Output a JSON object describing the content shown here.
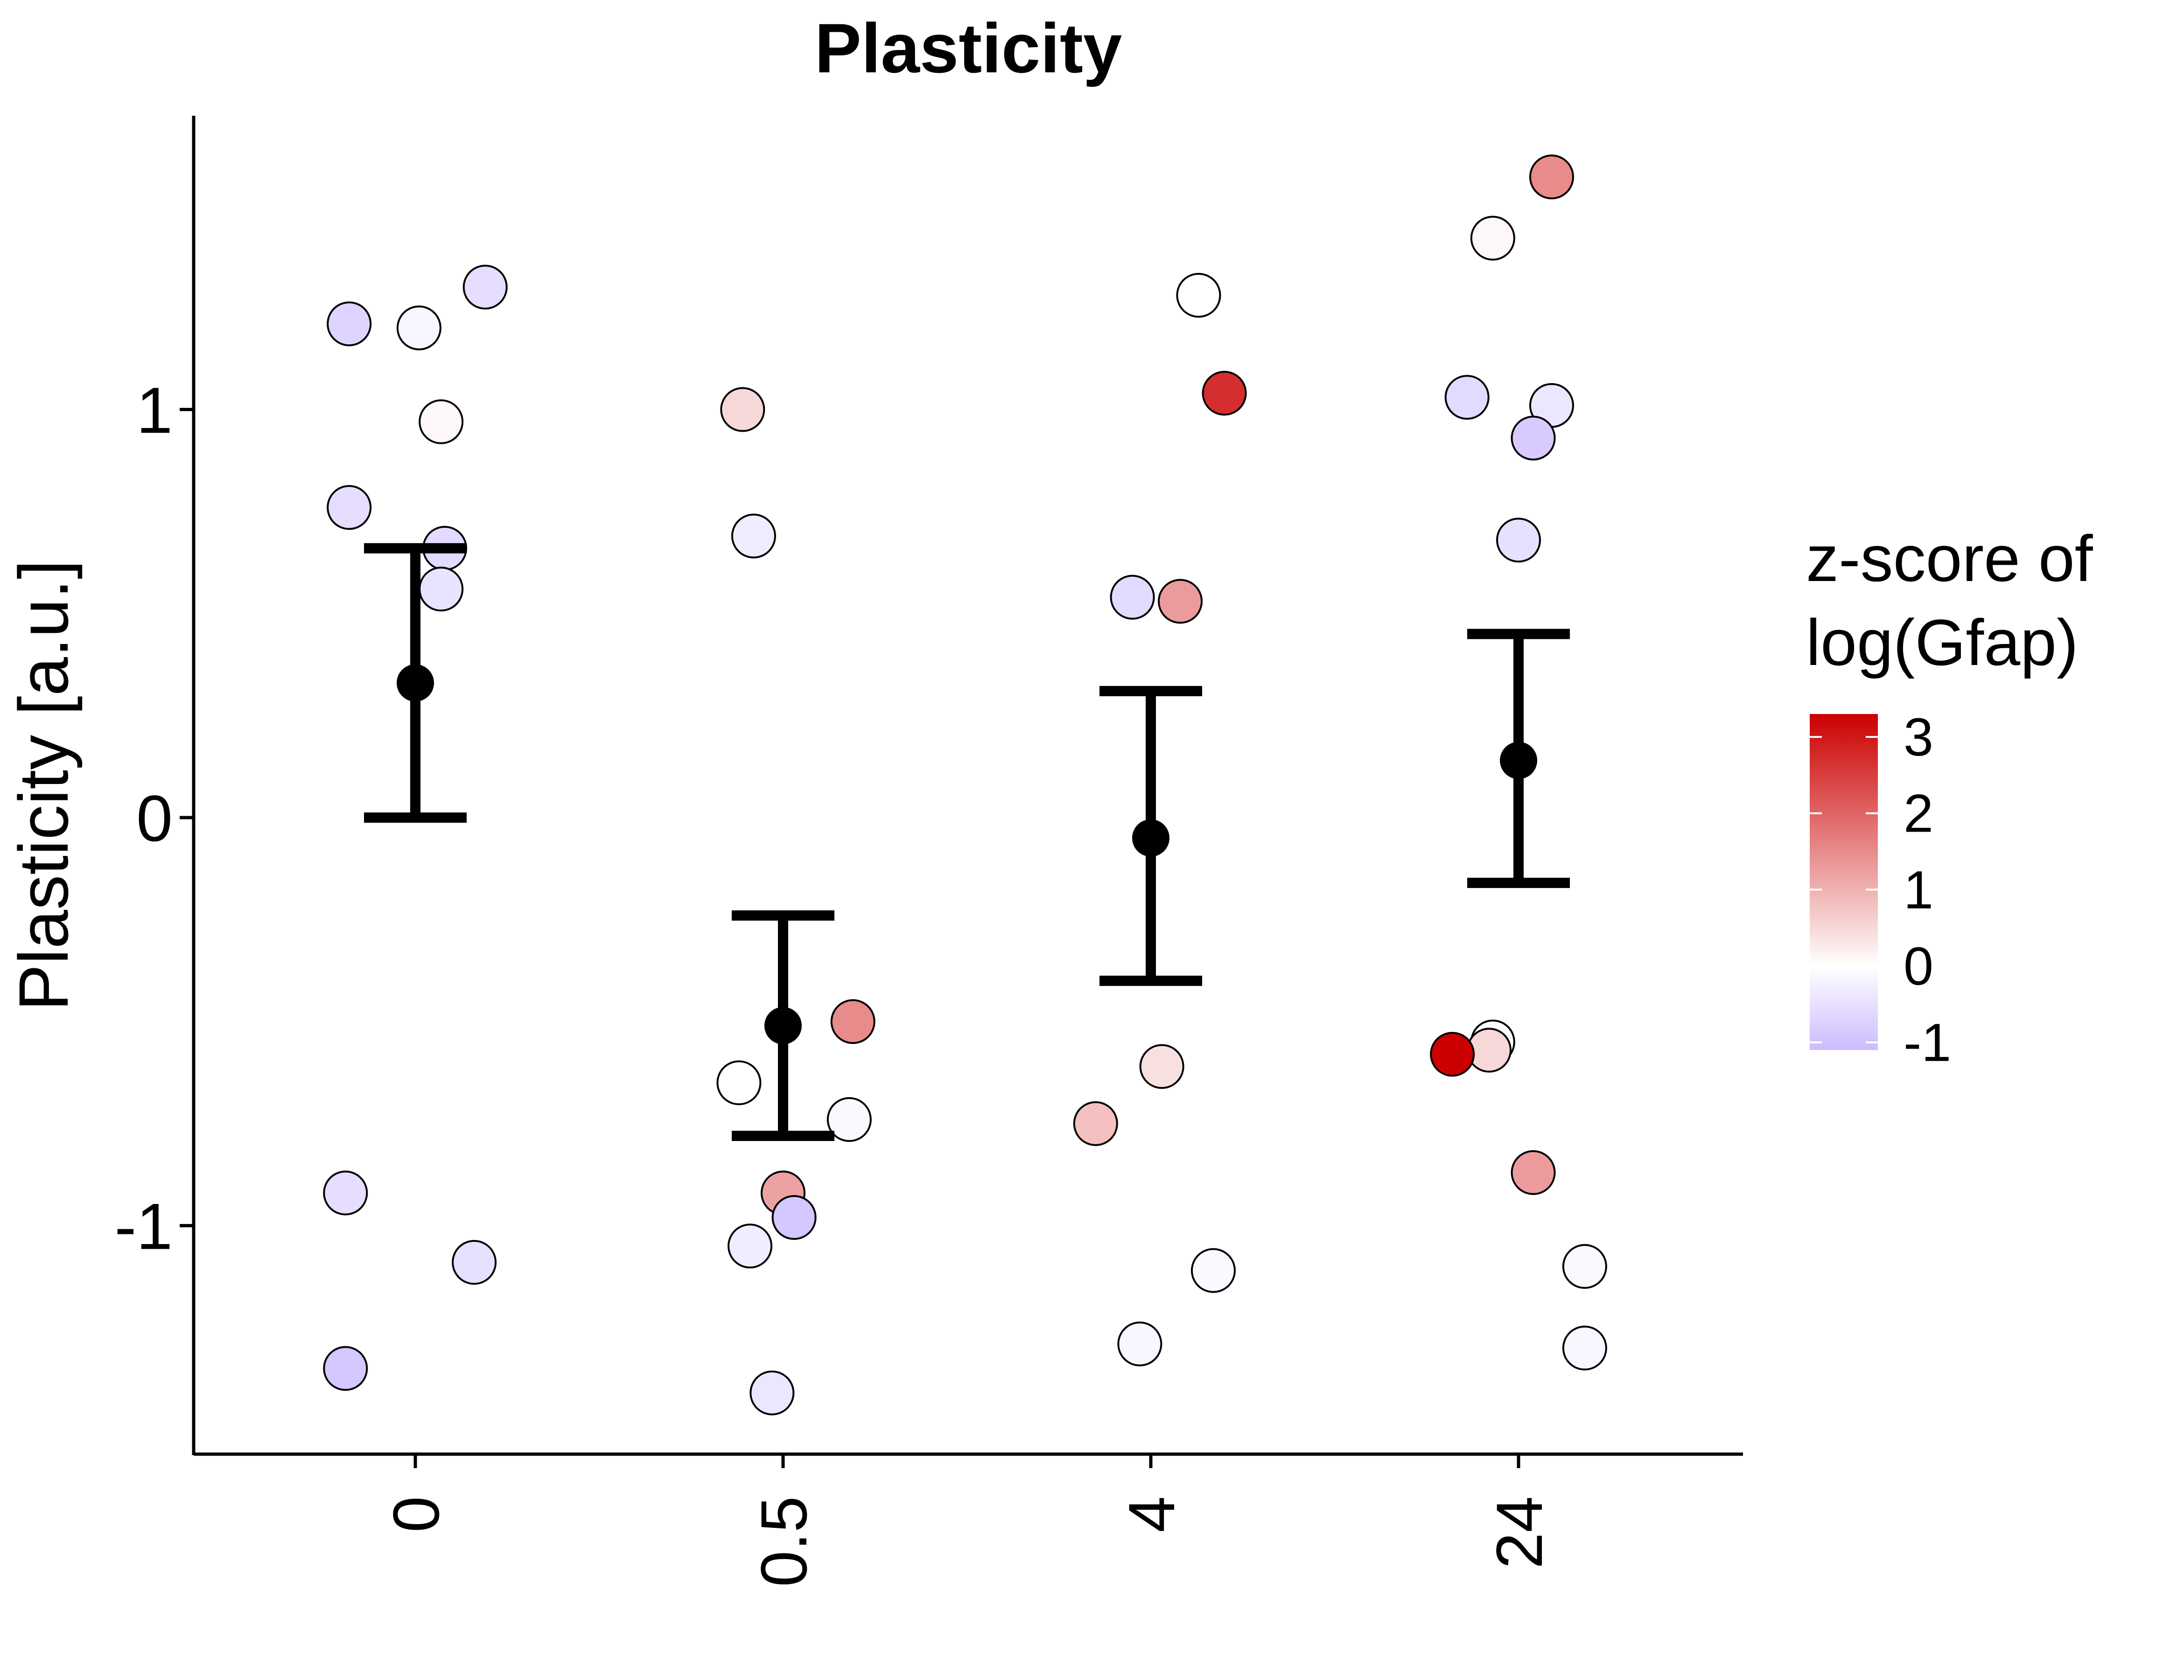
{
  "chart_data": {
    "type": "scatter",
    "title": "Plasticity",
    "xlabel": "",
    "ylabel": "Plasticity [a.u.]",
    "categories": [
      "0",
      "0.5",
      "4",
      "24"
    ],
    "ylim": [
      -1.56,
      1.72
    ],
    "yticks": [
      -1,
      0,
      1
    ],
    "grid": false,
    "legend": {
      "title": [
        "z-score of",
        "log(Gfap)"
      ],
      "placement": "right",
      "ticks": [
        3,
        2,
        1,
        0,
        -1
      ],
      "range": [
        -1.1,
        3.3
      ],
      "colors": {
        "low": "#ccbbff",
        "mid": "#ffffff",
        "high": "#cc0000"
      }
    },
    "summary": [
      {
        "x": "0",
        "mean": 0.33,
        "lower": 0.0,
        "upper": 0.66
      },
      {
        "x": "0.5",
        "mean": -0.51,
        "lower": -0.78,
        "upper": -0.24
      },
      {
        "x": "4",
        "mean": -0.05,
        "lower": -0.4,
        "upper": 0.31
      },
      {
        "x": "24",
        "mean": 0.14,
        "lower": -0.16,
        "upper": 0.45
      }
    ],
    "points": [
      {
        "x": "0",
        "jitter": -0.18,
        "y": 1.21,
        "z": -0.7
      },
      {
        "x": "0",
        "jitter": 0.01,
        "y": 1.2,
        "z": -0.15
      },
      {
        "x": "0",
        "jitter": 0.19,
        "y": 1.3,
        "z": -0.55
      },
      {
        "x": "0",
        "jitter": 0.07,
        "y": 0.97,
        "z": 0.1
      },
      {
        "x": "0",
        "jitter": -0.18,
        "y": 0.76,
        "z": -0.55
      },
      {
        "x": "0",
        "jitter": 0.08,
        "y": 0.66,
        "z": -0.6
      },
      {
        "x": "0",
        "jitter": 0.07,
        "y": 0.56,
        "z": -0.45
      },
      {
        "x": "0",
        "jitter": -0.19,
        "y": -0.92,
        "z": -0.55
      },
      {
        "x": "0",
        "jitter": 0.16,
        "y": -1.09,
        "z": -0.5
      },
      {
        "x": "0",
        "jitter": -0.19,
        "y": -1.35,
        "z": -0.9
      },
      {
        "x": "0.5",
        "jitter": -0.11,
        "y": 1.0,
        "z": 0.5
      },
      {
        "x": "0.5",
        "jitter": -0.08,
        "y": 0.69,
        "z": -0.3
      },
      {
        "x": "0.5",
        "jitter": 0.19,
        "y": -0.5,
        "z": 1.5
      },
      {
        "x": "0.5",
        "jitter": -0.12,
        "y": -0.65,
        "z": 0.0
      },
      {
        "x": "0.5",
        "jitter": 0.18,
        "y": -0.74,
        "z": -0.1
      },
      {
        "x": "0.5",
        "jitter": 0.0,
        "y": -0.92,
        "z": 1.2
      },
      {
        "x": "0.5",
        "jitter": 0.03,
        "y": -0.98,
        "z": -0.9
      },
      {
        "x": "0.5",
        "jitter": -0.09,
        "y": -1.05,
        "z": -0.3
      },
      {
        "x": "0.5",
        "jitter": -0.03,
        "y": -1.41,
        "z": -0.4
      },
      {
        "x": "4",
        "jitter": 0.13,
        "y": 1.28,
        "z": 0.0
      },
      {
        "x": "4",
        "jitter": 0.2,
        "y": 1.04,
        "z": 2.7
      },
      {
        "x": "4",
        "jitter": -0.05,
        "y": 0.54,
        "z": -0.6
      },
      {
        "x": "4",
        "jitter": 0.08,
        "y": 0.53,
        "z": 1.3
      },
      {
        "x": "4",
        "jitter": 0.03,
        "y": -0.61,
        "z": 0.4
      },
      {
        "x": "4",
        "jitter": -0.15,
        "y": -0.75,
        "z": 0.8
      },
      {
        "x": "4",
        "jitter": 0.17,
        "y": -1.11,
        "z": -0.1
      },
      {
        "x": "4",
        "jitter": -0.03,
        "y": -1.29,
        "z": -0.15
      },
      {
        "x": "24",
        "jitter": 0.09,
        "y": 1.57,
        "z": 1.5
      },
      {
        "x": "24",
        "jitter": -0.07,
        "y": 1.42,
        "z": 0.1
      },
      {
        "x": "24",
        "jitter": -0.14,
        "y": 1.03,
        "z": -0.6
      },
      {
        "x": "24",
        "jitter": 0.09,
        "y": 1.01,
        "z": -0.4
      },
      {
        "x": "24",
        "jitter": 0.04,
        "y": 0.93,
        "z": -0.85
      },
      {
        "x": "24",
        "jitter": 0.0,
        "y": 0.68,
        "z": -0.5
      },
      {
        "x": "24",
        "jitter": -0.07,
        "y": -0.55,
        "z": -0.05
      },
      {
        "x": "24",
        "jitter": -0.08,
        "y": -0.57,
        "z": 0.5
      },
      {
        "x": "24",
        "jitter": -0.18,
        "y": -0.58,
        "z": 3.3
      },
      {
        "x": "24",
        "jitter": 0.04,
        "y": -0.87,
        "z": 1.3
      },
      {
        "x": "24",
        "jitter": 0.18,
        "y": -1.1,
        "z": -0.1
      },
      {
        "x": "24",
        "jitter": 0.18,
        "y": -1.3,
        "z": -0.15
      }
    ]
  }
}
